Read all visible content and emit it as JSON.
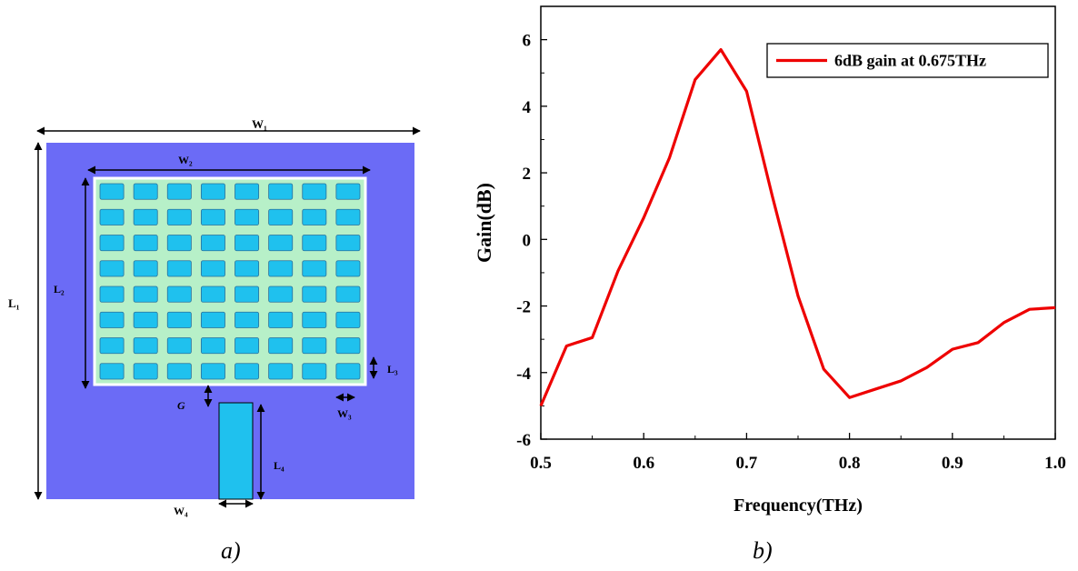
{
  "panel_a": {
    "caption": "a)",
    "labels": {
      "w1": "W₁",
      "w2": "W₂",
      "l1": "L₁",
      "l2": "L₂",
      "l3": "L₃",
      "l4": "L₄",
      "w3": "W₃",
      "w4": "W₄",
      "g": "G"
    },
    "grid": {
      "rows": 8,
      "cols": 8
    },
    "colors": {
      "substrate": "#6b6bf6",
      "frame": "#b7f0c8",
      "patch": "#1fc1ee",
      "feed": "#1fc1ee"
    }
  },
  "panel_b": {
    "caption": "b)"
  },
  "chart_data": {
    "type": "line",
    "title": "",
    "xlabel": "Frequency(THz)",
    "ylabel": "Gain(dB)",
    "xlim": [
      0.5,
      1.0
    ],
    "ylim": [
      -6,
      7
    ],
    "xticks": [
      "0.5",
      "0.6",
      "0.7",
      "0.8",
      "0.9",
      "1.0"
    ],
    "xtick_values": [
      0.5,
      0.6,
      0.7,
      0.8,
      0.9,
      1.0
    ],
    "yticks": [
      "-6",
      "-4",
      "-2",
      "0",
      "2",
      "4",
      "6"
    ],
    "ytick_values": [
      -6,
      -4,
      -2,
      0,
      2,
      4,
      6
    ],
    "grid": false,
    "legend": "top-right",
    "series": [
      {
        "name": "6dB gain at 0.675THz",
        "color": "#ee0000",
        "x": [
          0.5,
          0.525,
          0.55,
          0.575,
          0.6,
          0.625,
          0.65,
          0.675,
          0.7,
          0.725,
          0.75,
          0.775,
          0.8,
          0.825,
          0.85,
          0.875,
          0.9,
          0.925,
          0.95,
          0.975,
          1.0
        ],
        "y": [
          -5.0,
          -3.2,
          -2.95,
          -0.95,
          0.65,
          2.45,
          4.8,
          5.7,
          4.45,
          1.3,
          -1.7,
          -3.9,
          -4.75,
          -4.5,
          -4.25,
          -3.85,
          -3.3,
          -3.1,
          -2.5,
          -2.1,
          -2.05
        ]
      }
    ]
  }
}
